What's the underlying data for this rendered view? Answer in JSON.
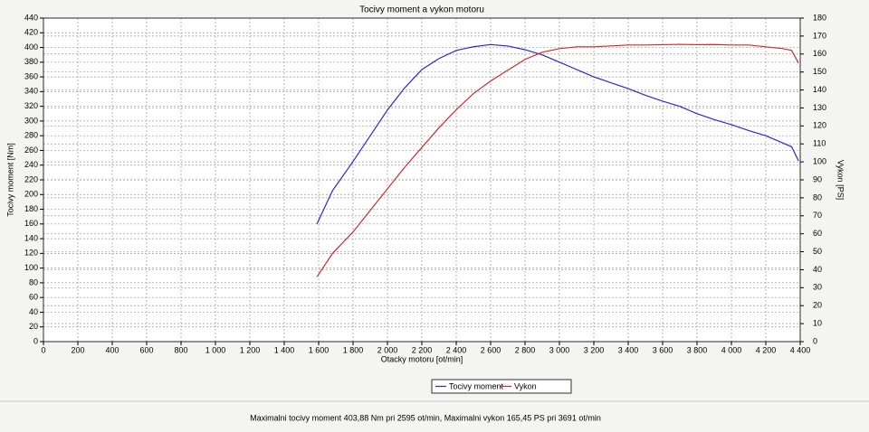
{
  "chart_data": {
    "type": "line",
    "title": "Tocivy moment a vykon motoru",
    "xlabel": "Otacky motoru [ot/min]",
    "ylabel": "Tocivy moment [Nm]",
    "y2label": "Vykon [PS]",
    "x": [
      1590,
      1680,
      1800,
      1900,
      2000,
      2100,
      2200,
      2300,
      2400,
      2500,
      2600,
      2700,
      2800,
      2900,
      3000,
      3100,
      3200,
      3300,
      3400,
      3500,
      3600,
      3700,
      3800,
      3900,
      4000,
      4100,
      4200,
      4300,
      4350,
      4390
    ],
    "series": [
      {
        "name": "Tocivy moment",
        "color": "#2828d8",
        "values": [
          160,
          205,
          245,
          280,
          315,
          345,
          370,
          385,
          396,
          401,
          404,
          402,
          397,
          390,
          380,
          370,
          360,
          352,
          344,
          335,
          327,
          320,
          310,
          302,
          295,
          287,
          280,
          270,
          265,
          246
        ]
      },
      {
        "name": "Vykon",
        "color": "#d82828",
        "axis": "y2",
        "values": [
          36,
          49,
          61,
          73,
          85,
          97,
          108,
          119,
          129,
          138,
          145,
          151,
          157,
          161,
          163,
          164,
          164,
          164.5,
          165,
          165,
          165.2,
          165.4,
          165.2,
          165.3,
          165,
          165,
          164,
          163,
          162,
          155
        ]
      }
    ],
    "xlim": [
      0,
      4400
    ],
    "ylim": [
      0,
      440
    ],
    "y2lim": [
      0,
      180
    ],
    "xticks": [
      0,
      200,
      400,
      600,
      800,
      {
        "value": 1000,
        "label": "1 000"
      },
      {
        "value": 1200,
        "label": "1 200"
      },
      {
        "value": 1400,
        "label": "1 400"
      },
      {
        "value": 1600,
        "label": "1 600"
      },
      {
        "value": 1800,
        "label": "1 800"
      },
      {
        "value": 2000,
        "label": "2 000"
      },
      {
        "value": 2200,
        "label": "2 200"
      },
      {
        "value": 2400,
        "label": "2 400"
      },
      {
        "value": 2600,
        "label": "2 600"
      },
      {
        "value": 2800,
        "label": "2 800"
      },
      {
        "value": 3000,
        "label": "3 000"
      },
      {
        "value": 3200,
        "label": "3 200"
      },
      {
        "value": 3400,
        "label": "3 400"
      },
      {
        "value": 3600,
        "label": "3 600"
      },
      {
        "value": 3800,
        "label": "3 800"
      },
      {
        "value": 4000,
        "label": "4 000"
      },
      {
        "value": 4200,
        "label": "4 200"
      },
      {
        "value": 4400,
        "label": "4 400"
      }
    ],
    "yticks": [
      0,
      20,
      40,
      60,
      80,
      100,
      120,
      140,
      160,
      180,
      200,
      220,
      240,
      260,
      280,
      300,
      320,
      340,
      360,
      380,
      400,
      420,
      440
    ],
    "y2ticks": [
      0,
      10,
      20,
      30,
      40,
      50,
      60,
      70,
      80,
      90,
      100,
      110,
      120,
      130,
      140,
      150,
      160,
      170,
      180
    ],
    "grid": true,
    "legend": "bottom"
  },
  "footer": "Maximalni tocivy moment 403,88 Nm pri 2595 ot/min,  Maximalni vykon 165,45 PS pri 3691 ot/min"
}
